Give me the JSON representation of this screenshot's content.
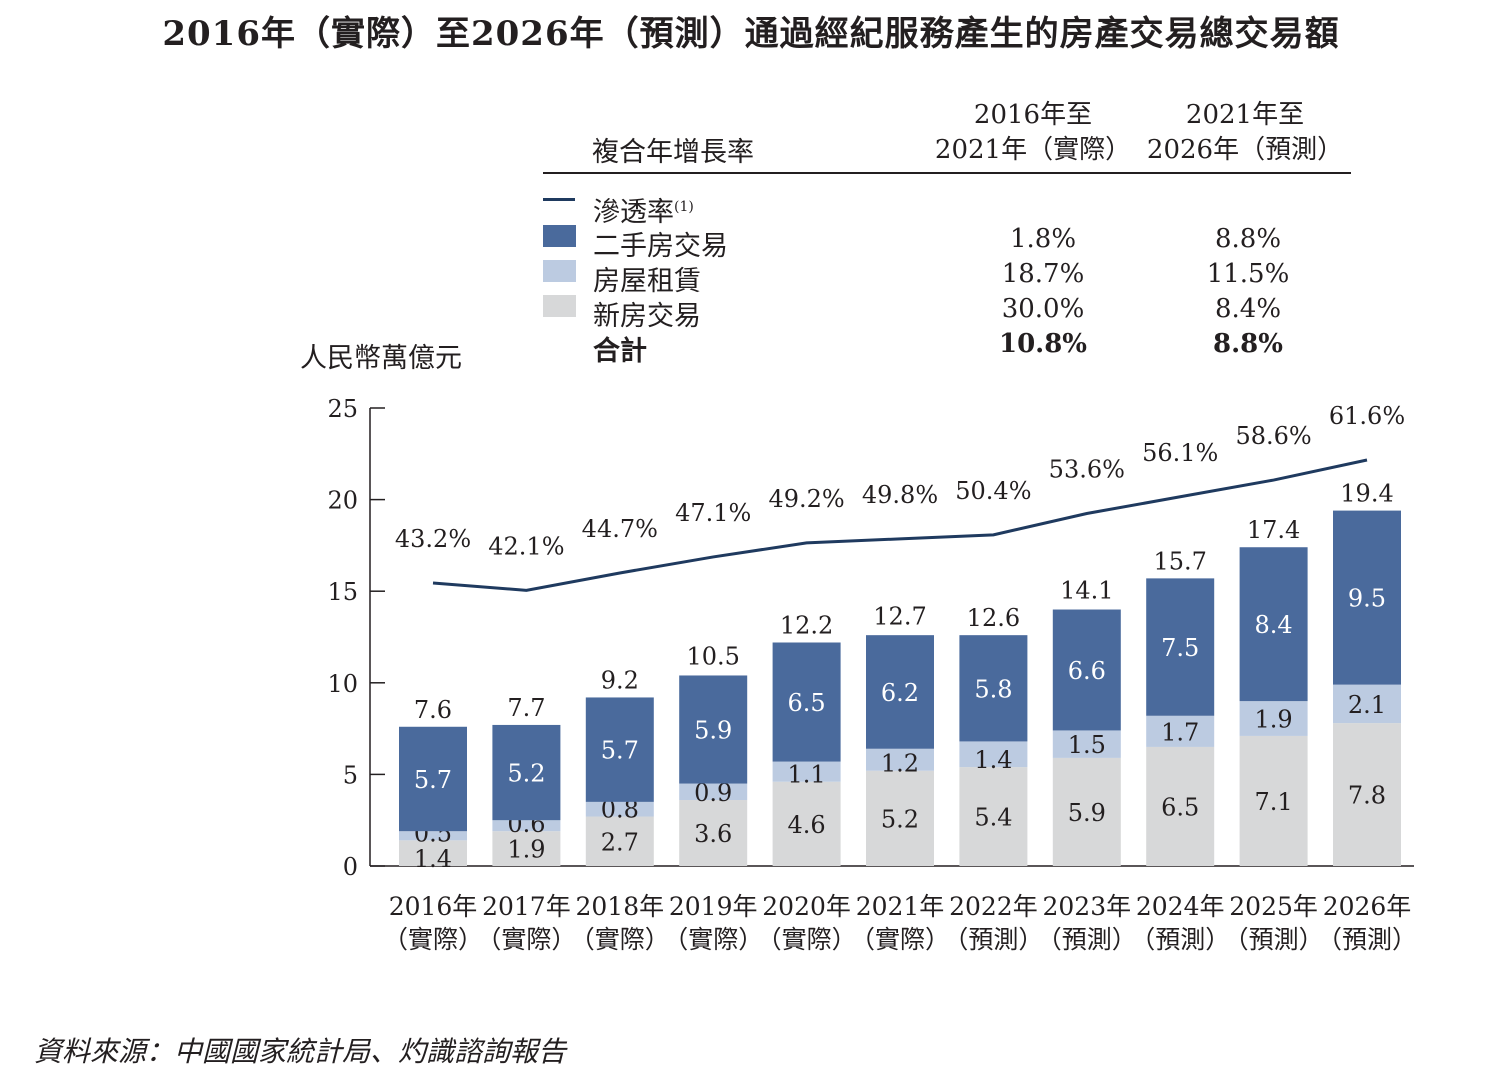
{
  "title": "2016年（實際）至2026年（預測）通過經紀服務產生的房產交易總交易額",
  "cagr_table": {
    "header": "複合年增長率",
    "periods": [
      {
        "line1": "2016年至",
        "line2": "2021年（實際）"
      },
      {
        "line1": "2021年至",
        "line2": "2026年（預測）"
      }
    ],
    "rows": [
      {
        "label": "滲透率",
        "sup": "(1)",
        "marker": "line",
        "color": "#1f3a5f",
        "values": [
          "",
          ""
        ],
        "bold": false
      },
      {
        "label": "二手房交易",
        "sup": "",
        "marker": "box",
        "color": "#4a6a9c",
        "values": [
          "1.8%",
          "8.8%"
        ],
        "bold": false
      },
      {
        "label": "房屋租賃",
        "sup": "",
        "marker": "box",
        "color": "#bccbe1",
        "values": [
          "18.7%",
          "11.5%"
        ],
        "bold": false
      },
      {
        "label": "新房交易",
        "sup": "",
        "marker": "box",
        "color": "#d7d8d9",
        "values": [
          "30.0%",
          "8.4%"
        ],
        "bold": false
      },
      {
        "label": "合計",
        "sup": "",
        "marker": "none",
        "color": "",
        "values": [
          "10.8%",
          "8.8%"
        ],
        "bold": true
      }
    ]
  },
  "unit_label": "人民幣萬億元",
  "source": "資料來源：中國國家統計局、灼識諮詢報告",
  "chart_data": {
    "type": "bar",
    "stacked": true,
    "categories": [
      [
        "2016年",
        "（實際）"
      ],
      [
        "2017年",
        "（實際）"
      ],
      [
        "2018年",
        "（實際）"
      ],
      [
        "2019年",
        "（實際）"
      ],
      [
        "2020年",
        "（實際）"
      ],
      [
        "2021年",
        "（實際）"
      ],
      [
        "2022年",
        "（預測）"
      ],
      [
        "2023年",
        "（預測）"
      ],
      [
        "2024年",
        "（預測）"
      ],
      [
        "2025年",
        "（預測）"
      ],
      [
        "2026年",
        "（預測）"
      ]
    ],
    "series": [
      {
        "name": "新房交易",
        "color": "#d7d8d9",
        "values": [
          1.4,
          1.9,
          2.7,
          3.6,
          4.6,
          5.2,
          5.4,
          5.9,
          6.5,
          7.1,
          7.8
        ]
      },
      {
        "name": "房屋租賃",
        "color": "#bccbe1",
        "values": [
          0.5,
          0.6,
          0.8,
          0.9,
          1.1,
          1.2,
          1.4,
          1.5,
          1.7,
          1.9,
          2.1
        ]
      },
      {
        "name": "二手房交易",
        "color": "#4a6a9c",
        "values": [
          5.7,
          5.2,
          5.7,
          5.9,
          6.5,
          6.2,
          5.8,
          6.6,
          7.5,
          8.4,
          9.5
        ]
      }
    ],
    "totals": [
      7.6,
      7.7,
      9.2,
      10.5,
      12.2,
      12.7,
      12.6,
      14.1,
      15.7,
      17.4,
      19.4
    ],
    "line": {
      "name": "滲透率",
      "color": "#1f3a5f",
      "values": [
        43.2,
        42.1,
        44.7,
        47.1,
        49.2,
        49.8,
        50.4,
        53.6,
        56.1,
        58.6,
        61.6
      ],
      "labels": [
        "43.2%",
        "42.1%",
        "44.7%",
        "47.1%",
        "49.2%",
        "49.8%",
        "50.4%",
        "53.6%",
        "56.1%",
        "58.6%",
        "61.6%"
      ]
    },
    "ylabel": "人民幣萬億元",
    "ylim": [
      0,
      25
    ],
    "yticks": [
      0,
      5,
      10,
      15,
      20,
      25
    ],
    "grid": false,
    "legend": "top"
  }
}
